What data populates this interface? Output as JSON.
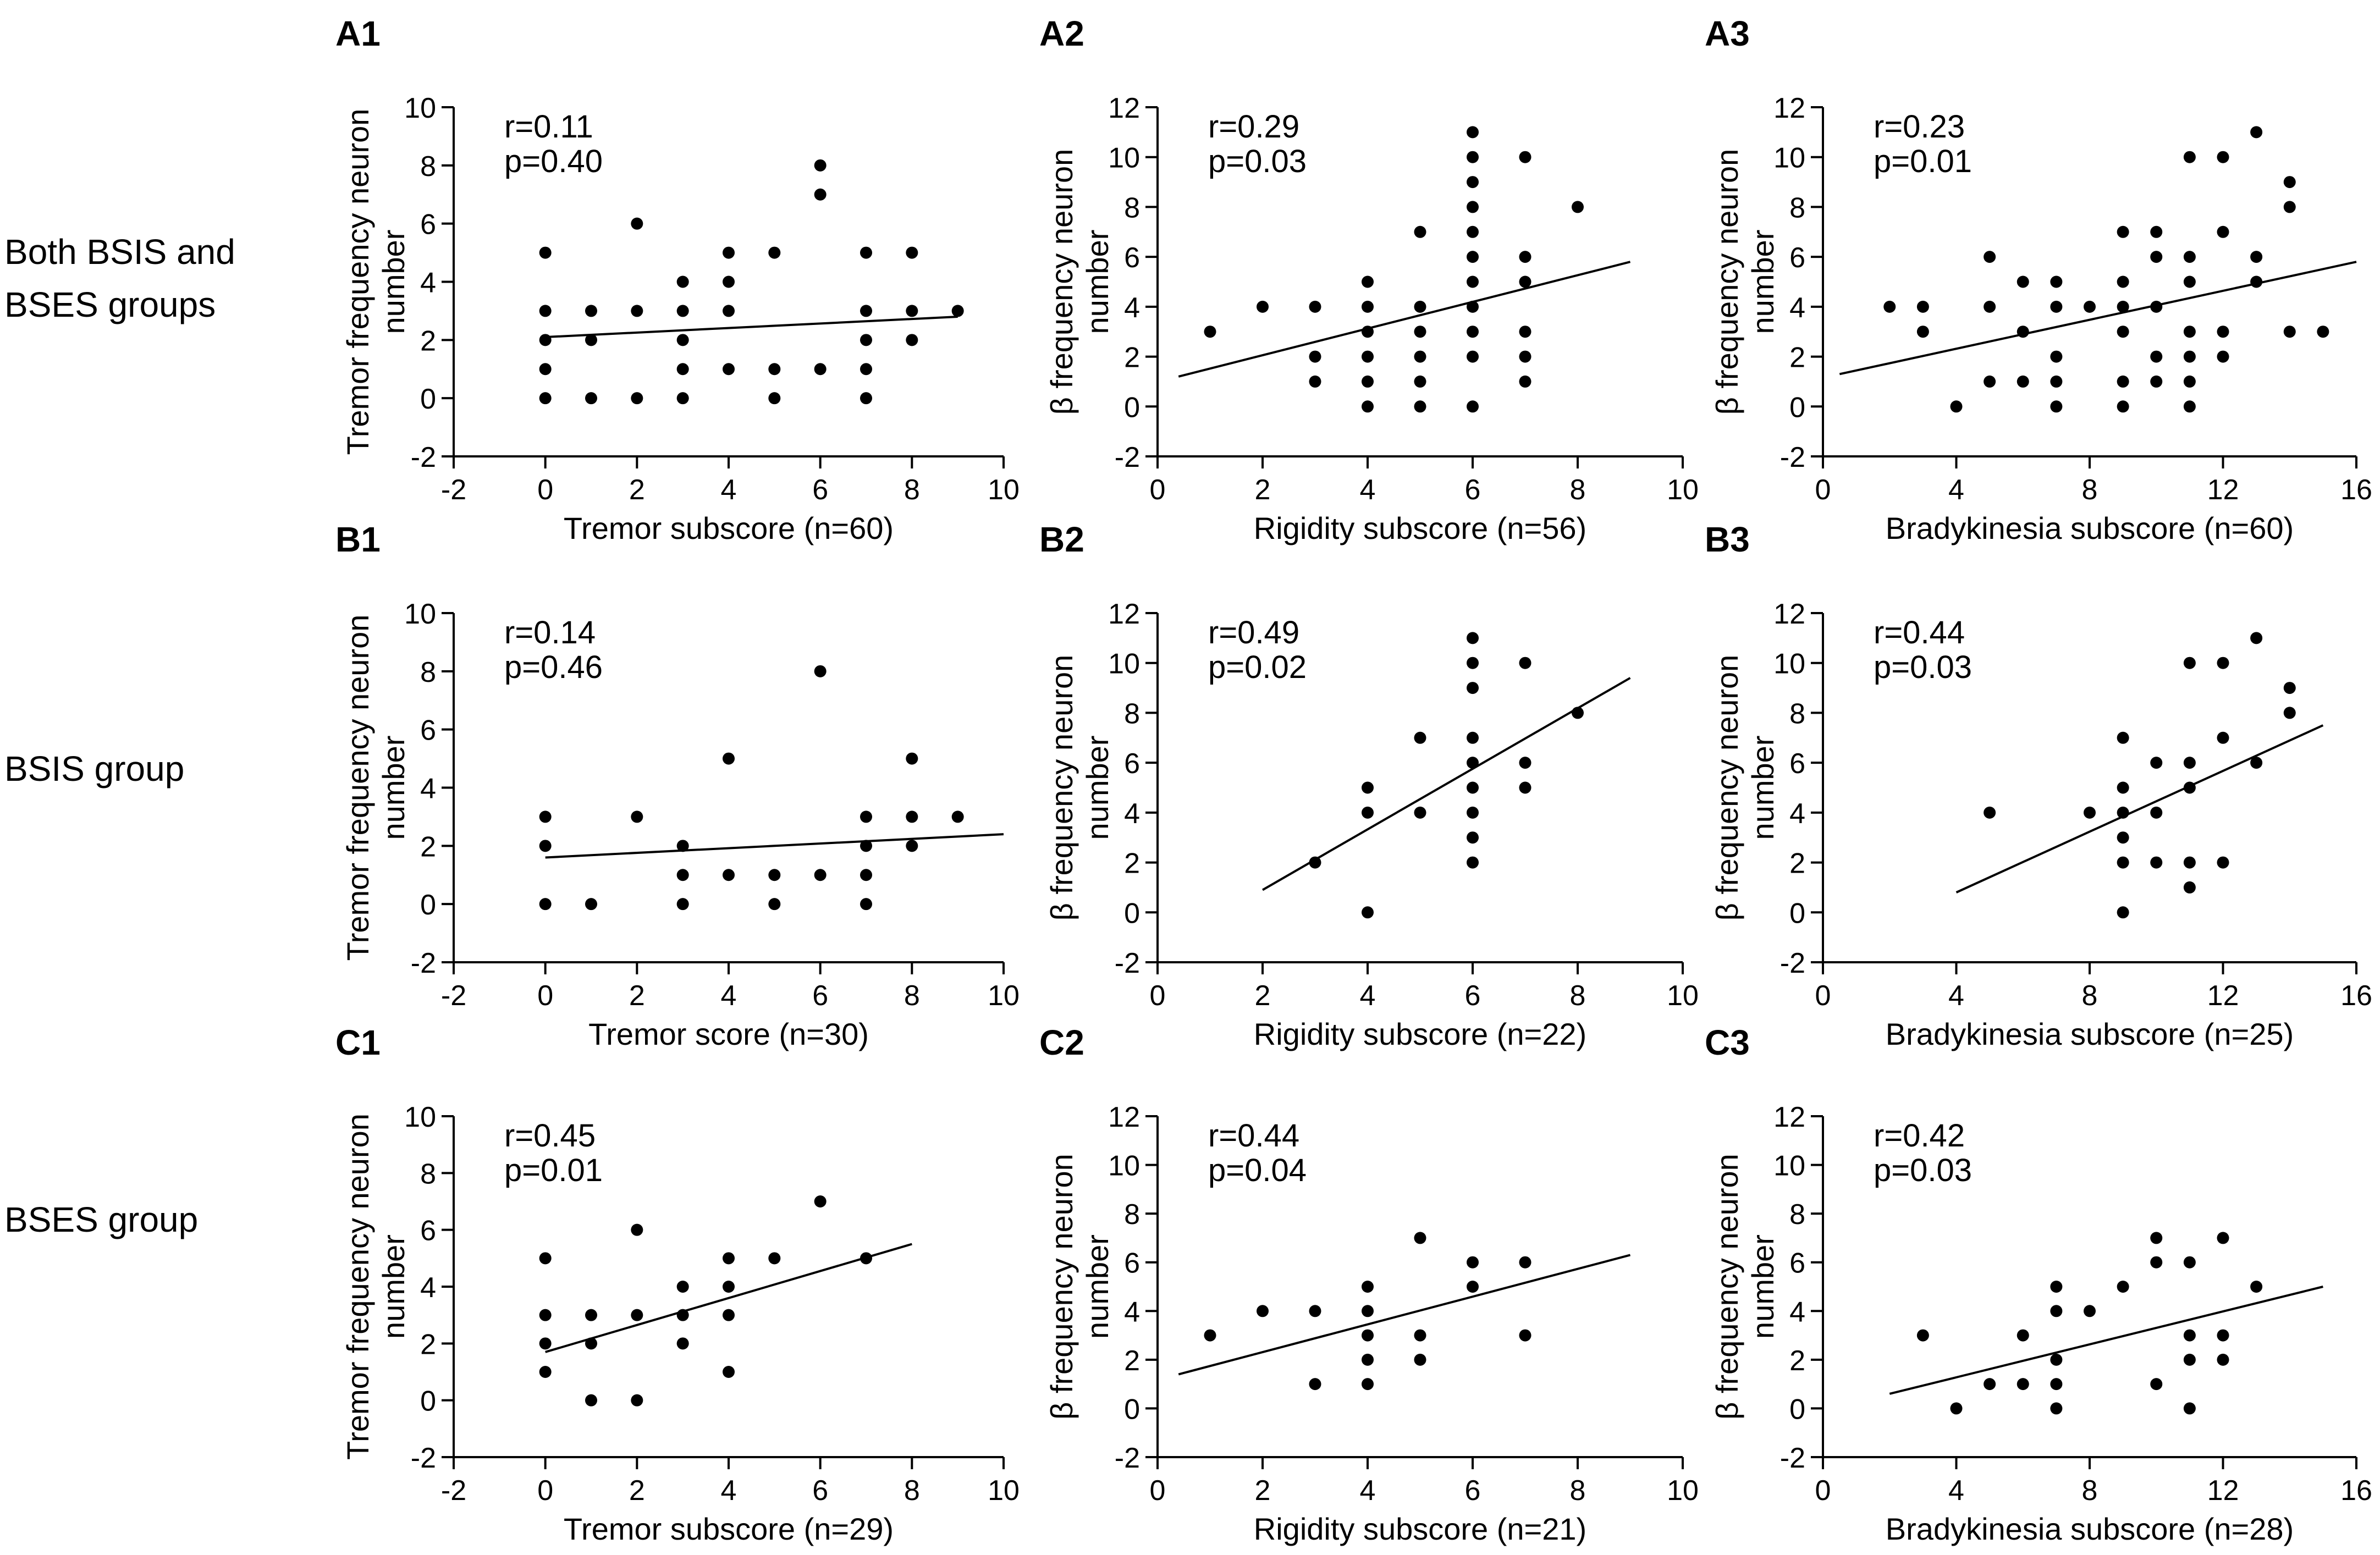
{
  "row_labels": [
    "Both BSIS and\nBSES groups",
    "BSIS group",
    "BSES group"
  ],
  "chart_data": [
    {
      "id": "A1",
      "type": "scatter",
      "panel_label": "A1",
      "xlabel": "Tremor subscore (n=60)",
      "ylabel_lines": [
        "Tremor frequency  neuron",
        "number"
      ],
      "xlim": [
        -2,
        10
      ],
      "ylim": [
        -2,
        10
      ],
      "xticks": [
        -2,
        0,
        2,
        4,
        6,
        8,
        10
      ],
      "yticks": [
        -2,
        0,
        2,
        4,
        6,
        8,
        10
      ],
      "stats": [
        "r=0.11",
        "p=0.40"
      ],
      "trendline": [
        [
          0,
          2.1
        ],
        [
          9,
          2.8
        ]
      ],
      "points": [
        [
          0,
          0
        ],
        [
          0,
          1
        ],
        [
          0,
          2
        ],
        [
          0,
          3
        ],
        [
          0,
          5
        ],
        [
          1,
          0
        ],
        [
          1,
          2
        ],
        [
          1,
          3
        ],
        [
          2,
          0
        ],
        [
          2,
          3
        ],
        [
          2,
          6
        ],
        [
          3,
          0
        ],
        [
          3,
          1
        ],
        [
          3,
          2
        ],
        [
          3,
          3
        ],
        [
          3,
          4
        ],
        [
          4,
          1
        ],
        [
          4,
          3
        ],
        [
          4,
          4
        ],
        [
          4,
          5
        ],
        [
          5,
          0
        ],
        [
          5,
          1
        ],
        [
          5,
          5
        ],
        [
          6,
          1
        ],
        [
          6,
          7
        ],
        [
          6,
          8
        ],
        [
          7,
          0
        ],
        [
          7,
          1
        ],
        [
          7,
          2
        ],
        [
          7,
          3
        ],
        [
          7,
          5
        ],
        [
          8,
          2
        ],
        [
          8,
          3
        ],
        [
          8,
          5
        ],
        [
          9,
          3
        ]
      ]
    },
    {
      "id": "A2",
      "type": "scatter",
      "panel_label": "A2",
      "xlabel": "Rigidity subscore (n=56)",
      "ylabel_lines": [
        "β frequency neuron",
        "number"
      ],
      "xlim": [
        0,
        10
      ],
      "ylim": [
        -2,
        12
      ],
      "xticks": [
        0,
        2,
        4,
        6,
        8,
        10
      ],
      "yticks": [
        -2,
        0,
        2,
        4,
        6,
        8,
        10,
        12
      ],
      "stats": [
        "r=0.29",
        "p=0.03"
      ],
      "trendline": [
        [
          0.4,
          1.2
        ],
        [
          9,
          5.8
        ]
      ],
      "points": [
        [
          1,
          3
        ],
        [
          2,
          4
        ],
        [
          3,
          1
        ],
        [
          3,
          2
        ],
        [
          3,
          4
        ],
        [
          4,
          0
        ],
        [
          4,
          1
        ],
        [
          4,
          2
        ],
        [
          4,
          3
        ],
        [
          4,
          4
        ],
        [
          4,
          5
        ],
        [
          5,
          0
        ],
        [
          5,
          1
        ],
        [
          5,
          2
        ],
        [
          5,
          3
        ],
        [
          5,
          4
        ],
        [
          5,
          7
        ],
        [
          6,
          0
        ],
        [
          6,
          2
        ],
        [
          6,
          3
        ],
        [
          6,
          4
        ],
        [
          6,
          5
        ],
        [
          6,
          6
        ],
        [
          6,
          7
        ],
        [
          6,
          8
        ],
        [
          6,
          9
        ],
        [
          6,
          10
        ],
        [
          6,
          11
        ],
        [
          7,
          1
        ],
        [
          7,
          2
        ],
        [
          7,
          3
        ],
        [
          7,
          5
        ],
        [
          7,
          6
        ],
        [
          7,
          10
        ],
        [
          8,
          8
        ]
      ]
    },
    {
      "id": "A3",
      "type": "scatter",
      "panel_label": "A3",
      "xlabel": "Bradykinesia subscore (n=60)",
      "ylabel_lines": [
        "β frequency neuron",
        "number"
      ],
      "xlim": [
        0,
        16
      ],
      "ylim": [
        -2,
        12
      ],
      "xticks": [
        0,
        4,
        8,
        12,
        16
      ],
      "yticks": [
        -2,
        0,
        2,
        4,
        6,
        8,
        10,
        12
      ],
      "stats": [
        "r=0.23",
        "p=0.01"
      ],
      "trendline": [
        [
          0.5,
          1.3
        ],
        [
          16,
          5.8
        ]
      ],
      "points": [
        [
          2,
          4
        ],
        [
          3,
          3
        ],
        [
          3,
          4
        ],
        [
          4,
          0
        ],
        [
          5,
          1
        ],
        [
          5,
          4
        ],
        [
          5,
          6
        ],
        [
          6,
          1
        ],
        [
          6,
          3
        ],
        [
          6,
          5
        ],
        [
          7,
          0
        ],
        [
          7,
          1
        ],
        [
          7,
          2
        ],
        [
          7,
          4
        ],
        [
          7,
          5
        ],
        [
          8,
          4
        ],
        [
          9,
          0
        ],
        [
          9,
          1
        ],
        [
          9,
          3
        ],
        [
          9,
          4
        ],
        [
          9,
          5
        ],
        [
          9,
          7
        ],
        [
          10,
          1
        ],
        [
          10,
          2
        ],
        [
          10,
          4
        ],
        [
          10,
          6
        ],
        [
          10,
          7
        ],
        [
          11,
          0
        ],
        [
          11,
          1
        ],
        [
          11,
          2
        ],
        [
          11,
          3
        ],
        [
          11,
          5
        ],
        [
          11,
          6
        ],
        [
          11,
          10
        ],
        [
          12,
          2
        ],
        [
          12,
          3
        ],
        [
          12,
          7
        ],
        [
          12,
          10
        ],
        [
          13,
          5
        ],
        [
          13,
          6
        ],
        [
          13,
          11
        ],
        [
          14,
          3
        ],
        [
          14,
          8
        ],
        [
          14,
          9
        ],
        [
          15,
          3
        ]
      ]
    },
    {
      "id": "B1",
      "type": "scatter",
      "panel_label": "B1",
      "xlabel": "Tremor score (n=30)",
      "ylabel_lines": [
        "Tremor frequency  neuron",
        "number"
      ],
      "xlim": [
        -2,
        10
      ],
      "ylim": [
        -2,
        10
      ],
      "xticks": [
        -2,
        0,
        2,
        4,
        6,
        8,
        10
      ],
      "yticks": [
        -2,
        0,
        2,
        4,
        6,
        8,
        10
      ],
      "stats": [
        "r=0.14",
        "p=0.46"
      ],
      "trendline": [
        [
          0,
          1.6
        ],
        [
          10,
          2.4
        ]
      ],
      "points": [
        [
          0,
          0
        ],
        [
          0,
          2
        ],
        [
          0,
          3
        ],
        [
          1,
          0
        ],
        [
          2,
          3
        ],
        [
          3,
          0
        ],
        [
          3,
          1
        ],
        [
          3,
          2
        ],
        [
          4,
          1
        ],
        [
          4,
          5
        ],
        [
          5,
          0
        ],
        [
          5,
          1
        ],
        [
          6,
          1
        ],
        [
          6,
          8
        ],
        [
          7,
          0
        ],
        [
          7,
          1
        ],
        [
          7,
          2
        ],
        [
          7,
          3
        ],
        [
          8,
          2
        ],
        [
          8,
          3
        ],
        [
          8,
          5
        ],
        [
          9,
          3
        ]
      ]
    },
    {
      "id": "B2",
      "type": "scatter",
      "panel_label": "B2",
      "xlabel": "Rigidity subscore (n=22)",
      "ylabel_lines": [
        "β frequency neuron",
        "number"
      ],
      "xlim": [
        0,
        10
      ],
      "ylim": [
        -2,
        12
      ],
      "xticks": [
        0,
        2,
        4,
        6,
        8,
        10
      ],
      "yticks": [
        -2,
        0,
        2,
        4,
        6,
        8,
        10,
        12
      ],
      "stats": [
        "r=0.49",
        "p=0.02"
      ],
      "trendline": [
        [
          2,
          0.9
        ],
        [
          9,
          9.4
        ]
      ],
      "points": [
        [
          3,
          2
        ],
        [
          4,
          0
        ],
        [
          4,
          4
        ],
        [
          4,
          5
        ],
        [
          5,
          4
        ],
        [
          5,
          7
        ],
        [
          6,
          2
        ],
        [
          6,
          3
        ],
        [
          6,
          4
        ],
        [
          6,
          5
        ],
        [
          6,
          6
        ],
        [
          6,
          7
        ],
        [
          6,
          9
        ],
        [
          6,
          10
        ],
        [
          6,
          11
        ],
        [
          7,
          5
        ],
        [
          7,
          6
        ],
        [
          7,
          10
        ],
        [
          8,
          8
        ]
      ]
    },
    {
      "id": "B3",
      "type": "scatter",
      "panel_label": "B3",
      "xlabel": "Bradykinesia subscore (n=25)",
      "ylabel_lines": [
        "β frequency neuron",
        "number"
      ],
      "xlim": [
        0,
        16
      ],
      "ylim": [
        -2,
        12
      ],
      "xticks": [
        0,
        4,
        8,
        12,
        16
      ],
      "yticks": [
        -2,
        0,
        2,
        4,
        6,
        8,
        10,
        12
      ],
      "stats": [
        "r=0.44",
        "p=0.03"
      ],
      "trendline": [
        [
          4,
          0.8
        ],
        [
          15,
          7.5
        ]
      ],
      "points": [
        [
          5,
          4
        ],
        [
          8,
          4
        ],
        [
          9,
          0
        ],
        [
          9,
          2
        ],
        [
          9,
          3
        ],
        [
          9,
          4
        ],
        [
          9,
          5
        ],
        [
          9,
          7
        ],
        [
          10,
          2
        ],
        [
          10,
          4
        ],
        [
          10,
          6
        ],
        [
          11,
          1
        ],
        [
          11,
          2
        ],
        [
          11,
          5
        ],
        [
          11,
          6
        ],
        [
          11,
          10
        ],
        [
          12,
          2
        ],
        [
          12,
          7
        ],
        [
          12,
          10
        ],
        [
          13,
          6
        ],
        [
          13,
          11
        ],
        [
          14,
          8
        ],
        [
          14,
          9
        ]
      ]
    },
    {
      "id": "C1",
      "type": "scatter",
      "panel_label": "C1",
      "xlabel": "Tremor  subscore (n=29)",
      "ylabel_lines": [
        "Tremor frequency  neuron",
        "number"
      ],
      "xlim": [
        -2,
        10
      ],
      "ylim": [
        -2,
        10
      ],
      "xticks": [
        -2,
        0,
        2,
        4,
        6,
        8,
        10
      ],
      "yticks": [
        -2,
        0,
        2,
        4,
        6,
        8,
        10
      ],
      "stats": [
        "r=0.45",
        "p=0.01"
      ],
      "trendline": [
        [
          0,
          1.7
        ],
        [
          8,
          5.5
        ]
      ],
      "points": [
        [
          0,
          1
        ],
        [
          0,
          2
        ],
        [
          0,
          3
        ],
        [
          0,
          5
        ],
        [
          1,
          0
        ],
        [
          1,
          2
        ],
        [
          1,
          3
        ],
        [
          2,
          0
        ],
        [
          2,
          3
        ],
        [
          2,
          6
        ],
        [
          3,
          2
        ],
        [
          3,
          3
        ],
        [
          3,
          4
        ],
        [
          4,
          1
        ],
        [
          4,
          3
        ],
        [
          4,
          4
        ],
        [
          4,
          5
        ],
        [
          5,
          5
        ],
        [
          6,
          7
        ],
        [
          7,
          5
        ]
      ]
    },
    {
      "id": "C2",
      "type": "scatter",
      "panel_label": "C2",
      "xlabel": "Rigidity subscore (n=21)",
      "ylabel_lines": [
        "β frequency neuron",
        "number"
      ],
      "xlim": [
        0,
        10
      ],
      "ylim": [
        -2,
        12
      ],
      "xticks": [
        0,
        2,
        4,
        6,
        8,
        10
      ],
      "yticks": [
        -2,
        0,
        2,
        4,
        6,
        8,
        10,
        12
      ],
      "stats": [
        "r=0.44",
        "p=0.04"
      ],
      "trendline": [
        [
          0.4,
          1.4
        ],
        [
          9,
          6.3
        ]
      ],
      "points": [
        [
          1,
          3
        ],
        [
          2,
          4
        ],
        [
          3,
          1
        ],
        [
          3,
          4
        ],
        [
          4,
          1
        ],
        [
          4,
          2
        ],
        [
          4,
          3
        ],
        [
          4,
          4
        ],
        [
          4,
          5
        ],
        [
          5,
          2
        ],
        [
          5,
          3
        ],
        [
          5,
          7
        ],
        [
          6,
          5
        ],
        [
          6,
          6
        ],
        [
          7,
          3
        ],
        [
          7,
          6
        ]
      ]
    },
    {
      "id": "C3",
      "type": "scatter",
      "panel_label": "C3",
      "xlabel": "Bradykinesia subscore (n=28)",
      "ylabel_lines": [
        "β frequency neuron",
        "number"
      ],
      "xlim": [
        0,
        16
      ],
      "ylim": [
        -2,
        12
      ],
      "xticks": [
        0,
        4,
        8,
        12,
        16
      ],
      "yticks": [
        -2,
        0,
        2,
        4,
        6,
        8,
        10,
        12
      ],
      "stats": [
        "r=0.42",
        "p=0.03"
      ],
      "trendline": [
        [
          2,
          0.6
        ],
        [
          15,
          5
        ]
      ],
      "points": [
        [
          3,
          3
        ],
        [
          4,
          0
        ],
        [
          5,
          1
        ],
        [
          6,
          1
        ],
        [
          6,
          3
        ],
        [
          7,
          0
        ],
        [
          7,
          1
        ],
        [
          7,
          2
        ],
        [
          7,
          4
        ],
        [
          7,
          5
        ],
        [
          8,
          4
        ],
        [
          9,
          5
        ],
        [
          10,
          1
        ],
        [
          10,
          6
        ],
        [
          10,
          7
        ],
        [
          11,
          0
        ],
        [
          11,
          2
        ],
        [
          11,
          3
        ],
        [
          11,
          6
        ],
        [
          12,
          2
        ],
        [
          12,
          3
        ],
        [
          12,
          7
        ],
        [
          13,
          5
        ]
      ]
    }
  ]
}
